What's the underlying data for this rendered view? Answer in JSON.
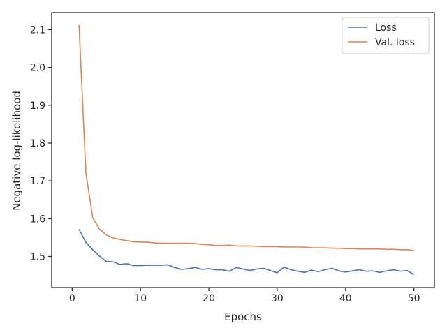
{
  "chart_data": {
    "type": "line",
    "xlabel": "Epochs",
    "ylabel": "Negative log-likelihood",
    "xlim": [
      -3,
      53
    ],
    "ylim": [
      1.418,
      2.145
    ],
    "xticks": [
      0,
      10,
      20,
      30,
      40,
      50
    ],
    "yticks": [
      1.5,
      1.6,
      1.7,
      1.8,
      1.9,
      2.0,
      2.1
    ],
    "legend_position": "top-right",
    "grid": false,
    "x": [
      1,
      2,
      3,
      4,
      5,
      6,
      7,
      8,
      9,
      10,
      11,
      12,
      13,
      14,
      15,
      16,
      17,
      18,
      19,
      20,
      21,
      22,
      23,
      24,
      25,
      26,
      27,
      28,
      29,
      30,
      31,
      32,
      33,
      34,
      35,
      36,
      37,
      38,
      39,
      40,
      41,
      42,
      43,
      44,
      45,
      46,
      47,
      48,
      49,
      50
    ],
    "series": [
      {
        "name": "Loss",
        "color": "#4c72b0",
        "values": [
          1.572,
          1.537,
          1.518,
          1.501,
          1.487,
          1.486,
          1.479,
          1.481,
          1.476,
          1.476,
          1.477,
          1.477,
          1.477,
          1.478,
          1.471,
          1.466,
          1.468,
          1.471,
          1.466,
          1.468,
          1.465,
          1.465,
          1.461,
          1.471,
          1.467,
          1.463,
          1.467,
          1.469,
          1.463,
          1.457,
          1.472,
          1.465,
          1.461,
          1.458,
          1.464,
          1.46,
          1.465,
          1.469,
          1.462,
          1.459,
          1.462,
          1.465,
          1.461,
          1.462,
          1.458,
          1.462,
          1.465,
          1.461,
          1.463,
          1.452
        ]
      },
      {
        "name": "Val. loss",
        "color": "#dd8452",
        "values": [
          2.112,
          1.722,
          1.603,
          1.572,
          1.557,
          1.549,
          1.545,
          1.542,
          1.539,
          1.538,
          1.538,
          1.536,
          1.535,
          1.535,
          1.535,
          1.535,
          1.535,
          1.534,
          1.532,
          1.531,
          1.529,
          1.529,
          1.53,
          1.528,
          1.528,
          1.528,
          1.527,
          1.526,
          1.526,
          1.526,
          1.525,
          1.525,
          1.525,
          1.525,
          1.523,
          1.523,
          1.523,
          1.522,
          1.522,
          1.521,
          1.521,
          1.52,
          1.52,
          1.52,
          1.52,
          1.519,
          1.519,
          1.518,
          1.518,
          1.516
        ]
      }
    ]
  }
}
